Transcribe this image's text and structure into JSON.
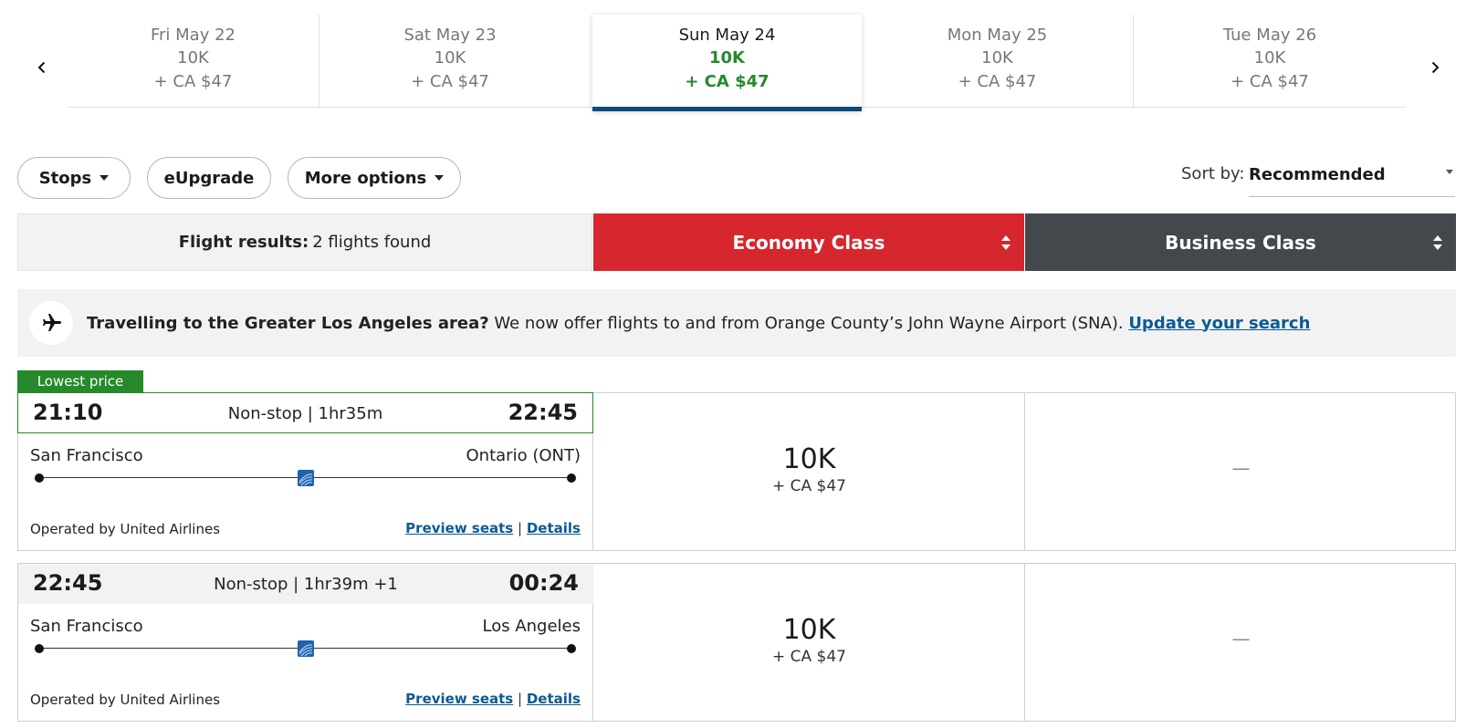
{
  "date_strip": {
    "prev_icon": "chevron-left-icon",
    "next_icon": "chevron-right-icon",
    "dates": [
      {
        "day": "Fri May 22",
        "points": "10K",
        "cash": "+ CA $47"
      },
      {
        "day": "Sat May 23",
        "points": "10K",
        "cash": "+ CA $47"
      },
      {
        "day": "Sun May 24",
        "points": "10K",
        "cash": "+ CA $47"
      },
      {
        "day": "Mon May 25",
        "points": "10K",
        "cash": "+ CA $47"
      },
      {
        "day": "Tue May 26",
        "points": "10K",
        "cash": "+ CA $47"
      }
    ],
    "selected_day": "Sun May 24"
  },
  "filters": {
    "stops_label": "Stops",
    "eupgrade_label": "eUpgrade",
    "more_options_label": "More options"
  },
  "sort": {
    "label": "Sort by:",
    "value": "Recommended"
  },
  "results_header": {
    "label": "Flight results:",
    "count_text": "2 flights found"
  },
  "cabin_classes": {
    "economy_label": "Economy Class",
    "business_label": "Business Class",
    "economy_color": "#d6262e",
    "business_color": "#44474c"
  },
  "notice": {
    "icon": "airplane-icon",
    "bold_text": "Travelling to the Greater Los Angeles area?",
    "text": " We now offer flights to and from Orange County’s John Wayne Airport (SNA). ",
    "link_text": "Update your search"
  },
  "flights": [
    {
      "badge": "Lowest price",
      "depart_time": "21:10",
      "summary": "Non-stop | 1hr35m",
      "arrive_time": "22:45",
      "origin": "San Francisco",
      "destination": "Ontario (ONT)",
      "operated_by": "Operated by United Airlines",
      "preview_seats_label": "Preview seats",
      "separator": "|",
      "details_label": "Details",
      "economy_points": "10K",
      "economy_cash": "+ CA $47",
      "business_fare": "—"
    },
    {
      "depart_time": "22:45",
      "summary": "Non-stop | 1hr39m +1",
      "arrive_time": "00:24",
      "origin": "San Francisco",
      "destination": "Los Angeles",
      "operated_by": "Operated by United Airlines",
      "preview_seats_label": "Preview seats",
      "separator": "|",
      "details_label": "Details",
      "economy_points": "10K",
      "economy_cash": "+ CA $47",
      "business_fare": "—"
    }
  ],
  "colors": {
    "accent_green": "#268a2a",
    "active_underline": "#0b4a7a",
    "link_blue": "#0b5a94"
  }
}
